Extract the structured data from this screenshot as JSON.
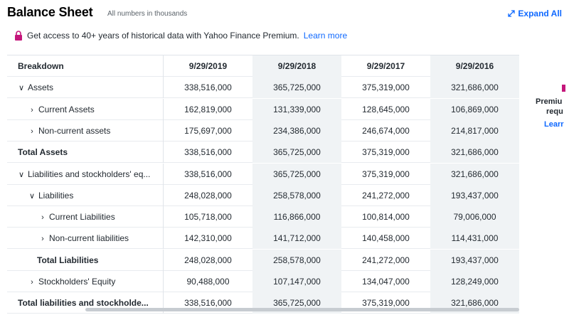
{
  "header": {
    "title": "Balance Sheet",
    "subtitle": "All numbers in thousands",
    "expand_label": "Expand All"
  },
  "premium": {
    "text": "Get access to 40+ years of historical data with Yahoo Finance Premium.",
    "link": "Learn more"
  },
  "table": {
    "columns": [
      "Breakdown",
      "9/29/2019",
      "9/29/2018",
      "9/29/2017",
      "9/29/2016"
    ],
    "rows": [
      {
        "label": "Assets",
        "chevron": "down",
        "bold": false,
        "values": [
          "338,516,000",
          "365,725,000",
          "375,319,000",
          "321,686,000"
        ]
      },
      {
        "label": "Current Assets",
        "chevron": "right",
        "bold": false,
        "values": [
          "162,819,000",
          "131,339,000",
          "128,645,000",
          "106,869,000"
        ]
      },
      {
        "label": "Non-current assets",
        "chevron": "right",
        "bold": false,
        "values": [
          "175,697,000",
          "234,386,000",
          "246,674,000",
          "214,817,000"
        ]
      },
      {
        "label": "Total Assets",
        "chevron": "",
        "bold": true,
        "values": [
          "338,516,000",
          "365,725,000",
          "375,319,000",
          "321,686,000"
        ]
      },
      {
        "label": "Liabilities and stockholders' eq...",
        "chevron": "down",
        "bold": false,
        "values": [
          "338,516,000",
          "365,725,000",
          "375,319,000",
          "321,686,000"
        ]
      },
      {
        "label": "Liabilities",
        "chevron": "down",
        "bold": false,
        "values": [
          "248,028,000",
          "258,578,000",
          "241,272,000",
          "193,437,000"
        ]
      },
      {
        "label": "Current Liabilities",
        "chevron": "right",
        "bold": false,
        "values": [
          "105,718,000",
          "116,866,000",
          "100,814,000",
          "79,006,000"
        ]
      },
      {
        "label": "Non-current liabilities",
        "chevron": "right",
        "bold": false,
        "values": [
          "142,310,000",
          "141,712,000",
          "140,458,000",
          "114,431,000"
        ]
      },
      {
        "label": "Total Liabilities",
        "chevron": "",
        "bold": true,
        "values": [
          "248,028,000",
          "258,578,000",
          "241,272,000",
          "193,437,000"
        ]
      },
      {
        "label": "Stockholders' Equity",
        "chevron": "right",
        "bold": false,
        "values": [
          "90,488,000",
          "107,147,000",
          "134,047,000",
          "128,249,000"
        ]
      },
      {
        "label": "Total liabilities and stockholde...",
        "chevron": "",
        "bold": true,
        "values": [
          "338,516,000",
          "365,725,000",
          "375,319,000",
          "321,686,000"
        ]
      }
    ]
  },
  "side_panel": {
    "line1": "Premiu",
    "line2": "requ",
    "link": "Learr"
  },
  "colors": {
    "accent": "#0f69ff",
    "premium_lock": "#c4167b",
    "alt_column": "#f0f3f5"
  }
}
